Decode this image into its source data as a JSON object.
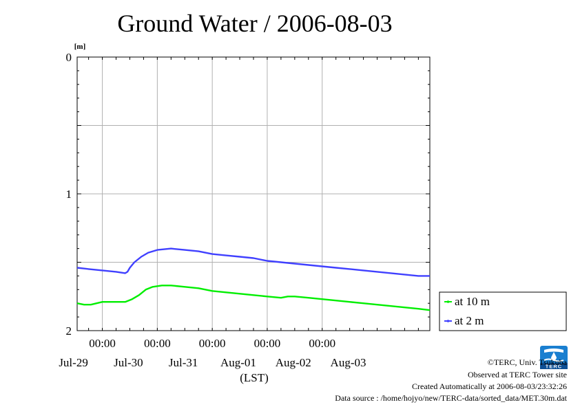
{
  "chart_data": {
    "type": "line",
    "title": "Ground Water / 2006-08-03",
    "y_unit": "[m]",
    "x_unit": "(LST)",
    "y_inverted": true,
    "ylim": [
      0,
      2
    ],
    "yticks": [
      "0",
      "1",
      "2"
    ],
    "xlim": [
      "2006-07-28T13:00",
      "2006-08-03T23:00"
    ],
    "xticks": [
      {
        "t": "2006-07-29T00:00",
        "time": "00:00",
        "date": "Jul-29"
      },
      {
        "t": "2006-07-30T00:00",
        "time": "00:00",
        "date": "Jul-30"
      },
      {
        "t": "2006-07-31T00:00",
        "time": "00:00",
        "date": "Jul-31"
      },
      {
        "t": "2006-08-01T00:00",
        "time": "00:00",
        "date": "Aug-01"
      },
      {
        "t": "2006-08-02T00:00",
        "time": "00:00",
        "date": "Aug-02"
      }
    ],
    "last_date_label": "Aug-03",
    "grid": true,
    "legend_position": "right",
    "series": [
      {
        "name": "at 10 m",
        "color": "#00ee00",
        "points": [
          [
            "2006-07-28T13:00",
            1.8
          ],
          [
            "2006-07-28T16:00",
            1.81
          ],
          [
            "2006-07-28T19:00",
            1.81
          ],
          [
            "2006-07-29T00:00",
            1.79
          ],
          [
            "2006-07-29T05:00",
            1.79
          ],
          [
            "2006-07-29T10:00",
            1.79
          ],
          [
            "2006-07-29T13:00",
            1.77
          ],
          [
            "2006-07-29T16:00",
            1.74
          ],
          [
            "2006-07-29T19:00",
            1.7
          ],
          [
            "2006-07-29T22:00",
            1.68
          ],
          [
            "2006-07-30T02:00",
            1.67
          ],
          [
            "2006-07-30T06:00",
            1.67
          ],
          [
            "2006-07-30T12:00",
            1.68
          ],
          [
            "2006-07-30T18:00",
            1.69
          ],
          [
            "2006-07-31T00:00",
            1.71
          ],
          [
            "2006-07-31T06:00",
            1.72
          ],
          [
            "2006-07-31T12:00",
            1.73
          ],
          [
            "2006-07-31T18:00",
            1.74
          ],
          [
            "2006-08-01T00:00",
            1.75
          ],
          [
            "2006-08-01T06:00",
            1.76
          ],
          [
            "2006-08-01T09:00",
            1.75
          ],
          [
            "2006-08-01T12:00",
            1.75
          ],
          [
            "2006-08-01T18:00",
            1.76
          ],
          [
            "2006-08-02T00:00",
            1.77
          ],
          [
            "2006-08-02T06:00",
            1.78
          ],
          [
            "2006-08-02T12:00",
            1.79
          ],
          [
            "2006-08-02T18:00",
            1.8
          ],
          [
            "2006-08-03T00:00",
            1.81
          ],
          [
            "2006-08-03T06:00",
            1.82
          ],
          [
            "2006-08-03T12:00",
            1.83
          ],
          [
            "2006-08-03T18:00",
            1.84
          ],
          [
            "2006-08-03T23:00",
            1.85
          ]
        ]
      },
      {
        "name": "at 2 m",
        "color": "#4040ff",
        "points": [
          [
            "2006-07-28T13:00",
            1.54
          ],
          [
            "2006-07-28T18:00",
            1.55
          ],
          [
            "2006-07-29T00:00",
            1.56
          ],
          [
            "2006-07-29T06:00",
            1.57
          ],
          [
            "2006-07-29T10:00",
            1.58
          ],
          [
            "2006-07-29T11:00",
            1.57
          ],
          [
            "2006-07-29T12:00",
            1.54
          ],
          [
            "2006-07-29T14:00",
            1.5
          ],
          [
            "2006-07-29T17:00",
            1.46
          ],
          [
            "2006-07-29T20:00",
            1.43
          ],
          [
            "2006-07-30T00:00",
            1.41
          ],
          [
            "2006-07-30T06:00",
            1.4
          ],
          [
            "2006-07-30T12:00",
            1.41
          ],
          [
            "2006-07-30T18:00",
            1.42
          ],
          [
            "2006-07-31T00:00",
            1.44
          ],
          [
            "2006-07-31T06:00",
            1.45
          ],
          [
            "2006-07-31T12:00",
            1.46
          ],
          [
            "2006-07-31T18:00",
            1.47
          ],
          [
            "2006-08-01T00:00",
            1.49
          ],
          [
            "2006-08-01T06:00",
            1.5
          ],
          [
            "2006-08-01T12:00",
            1.51
          ],
          [
            "2006-08-01T18:00",
            1.52
          ],
          [
            "2006-08-02T00:00",
            1.53
          ],
          [
            "2006-08-02T06:00",
            1.54
          ],
          [
            "2006-08-02T12:00",
            1.55
          ],
          [
            "2006-08-02T18:00",
            1.56
          ],
          [
            "2006-08-03T00:00",
            1.57
          ],
          [
            "2006-08-03T06:00",
            1.58
          ],
          [
            "2006-08-03T12:00",
            1.59
          ],
          [
            "2006-08-03T18:00",
            1.6
          ],
          [
            "2006-08-03T23:00",
            1.6
          ]
        ]
      }
    ]
  },
  "credits": {
    "copyright": "©TERC, Univ. Tsukuba",
    "observed": "Observed at TERC Tower site",
    "created": "Created Automatically at 2006-08-03/23:32:26",
    "source": "Data source : /home/hojyo/new/TERC-data/sorted_data/MET.30m.dat",
    "logo_text": "TERC"
  },
  "colors": {
    "accent_logo": "#1a7fd0",
    "grid": "#b0b0b0"
  }
}
